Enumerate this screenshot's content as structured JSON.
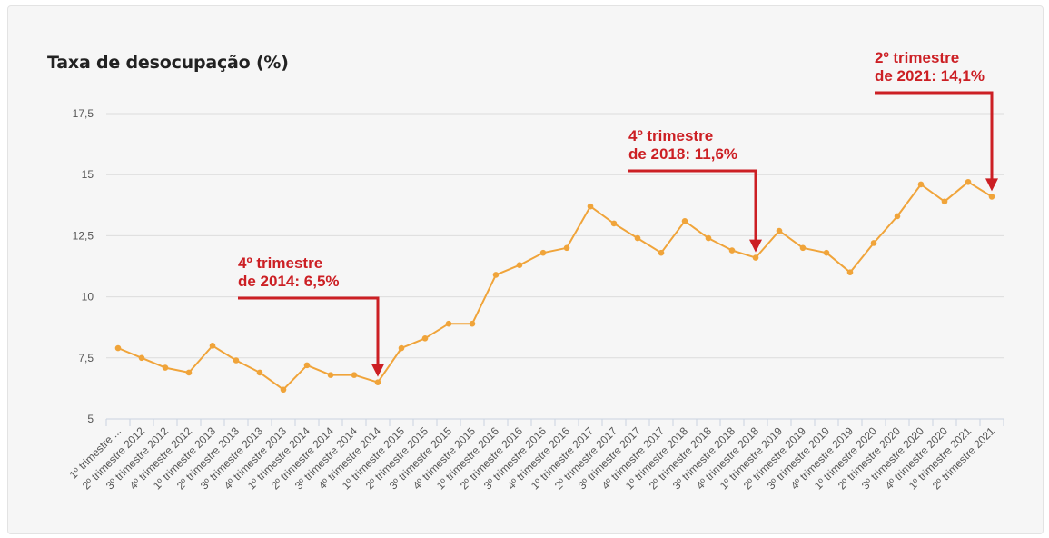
{
  "chart_data": {
    "type": "line",
    "title": "Taxa de desocupação (%)",
    "xlabel": "",
    "ylabel": "",
    "ylim": [
      5,
      17.5
    ],
    "yticks": [
      "5",
      "7,5",
      "10",
      "12,5",
      "15",
      "17,5"
    ],
    "grid": true,
    "legend": "none",
    "categories": [
      "1º trimestre ...",
      "2º trimestre 2012",
      "3º trimestre 2012",
      "4º trimestre 2012",
      "1º trimestre 2013",
      "2º trimestre 2013",
      "3º trimestre 2013",
      "4º trimestre 2013",
      "1º trimestre 2014",
      "2º trimestre 2014",
      "3º trimestre 2014",
      "4º trimestre 2014",
      "1º trimestre 2015",
      "2º trimestre 2015",
      "3º trimestre 2015",
      "4º trimestre 2015",
      "1º trimestre 2016",
      "2º trimestre 2016",
      "3º trimestre 2016",
      "4º trimestre 2016",
      "1º trimestre 2017",
      "2º trimestre 2017",
      "3º trimestre 2017",
      "4º trimestre 2017",
      "1º trimestre 2018",
      "2º trimestre 2018",
      "3º trimestre 2018",
      "4º trimestre 2018",
      "1º trimestre 2019",
      "2º trimestre 2019",
      "3º trimestre 2019",
      "4º trimestre 2019",
      "1º trimestre 2020",
      "2º trimestre 2020",
      "3º trimestre 2020",
      "4º trimestre 2020",
      "1º trimestre 2021",
      "2º trimestre 2021"
    ],
    "series": [
      {
        "color": "#f0a43a",
        "values": [
          7.9,
          7.5,
          7.1,
          6.9,
          8.0,
          7.4,
          6.9,
          6.2,
          7.2,
          6.8,
          6.8,
          6.5,
          7.9,
          8.3,
          8.9,
          8.9,
          10.9,
          11.3,
          11.8,
          12.0,
          13.7,
          13.0,
          12.4,
          11.8,
          13.1,
          12.4,
          11.9,
          11.6,
          12.7,
          12.0,
          11.8,
          11.0,
          12.2,
          13.3,
          14.6,
          13.9,
          14.7,
          14.1
        ]
      }
    ],
    "annotations": [
      {
        "lines": [
          "4º trimestre",
          "de 2014: 6,5%"
        ],
        "index": 11
      },
      {
        "lines": [
          "4º trimestre",
          "de 2018: 11,6%"
        ],
        "index": 27
      },
      {
        "lines": [
          "2º trimestre",
          "de 2021: 14,1%"
        ],
        "index": 37
      }
    ],
    "annotation_color": "#cc1f24"
  }
}
